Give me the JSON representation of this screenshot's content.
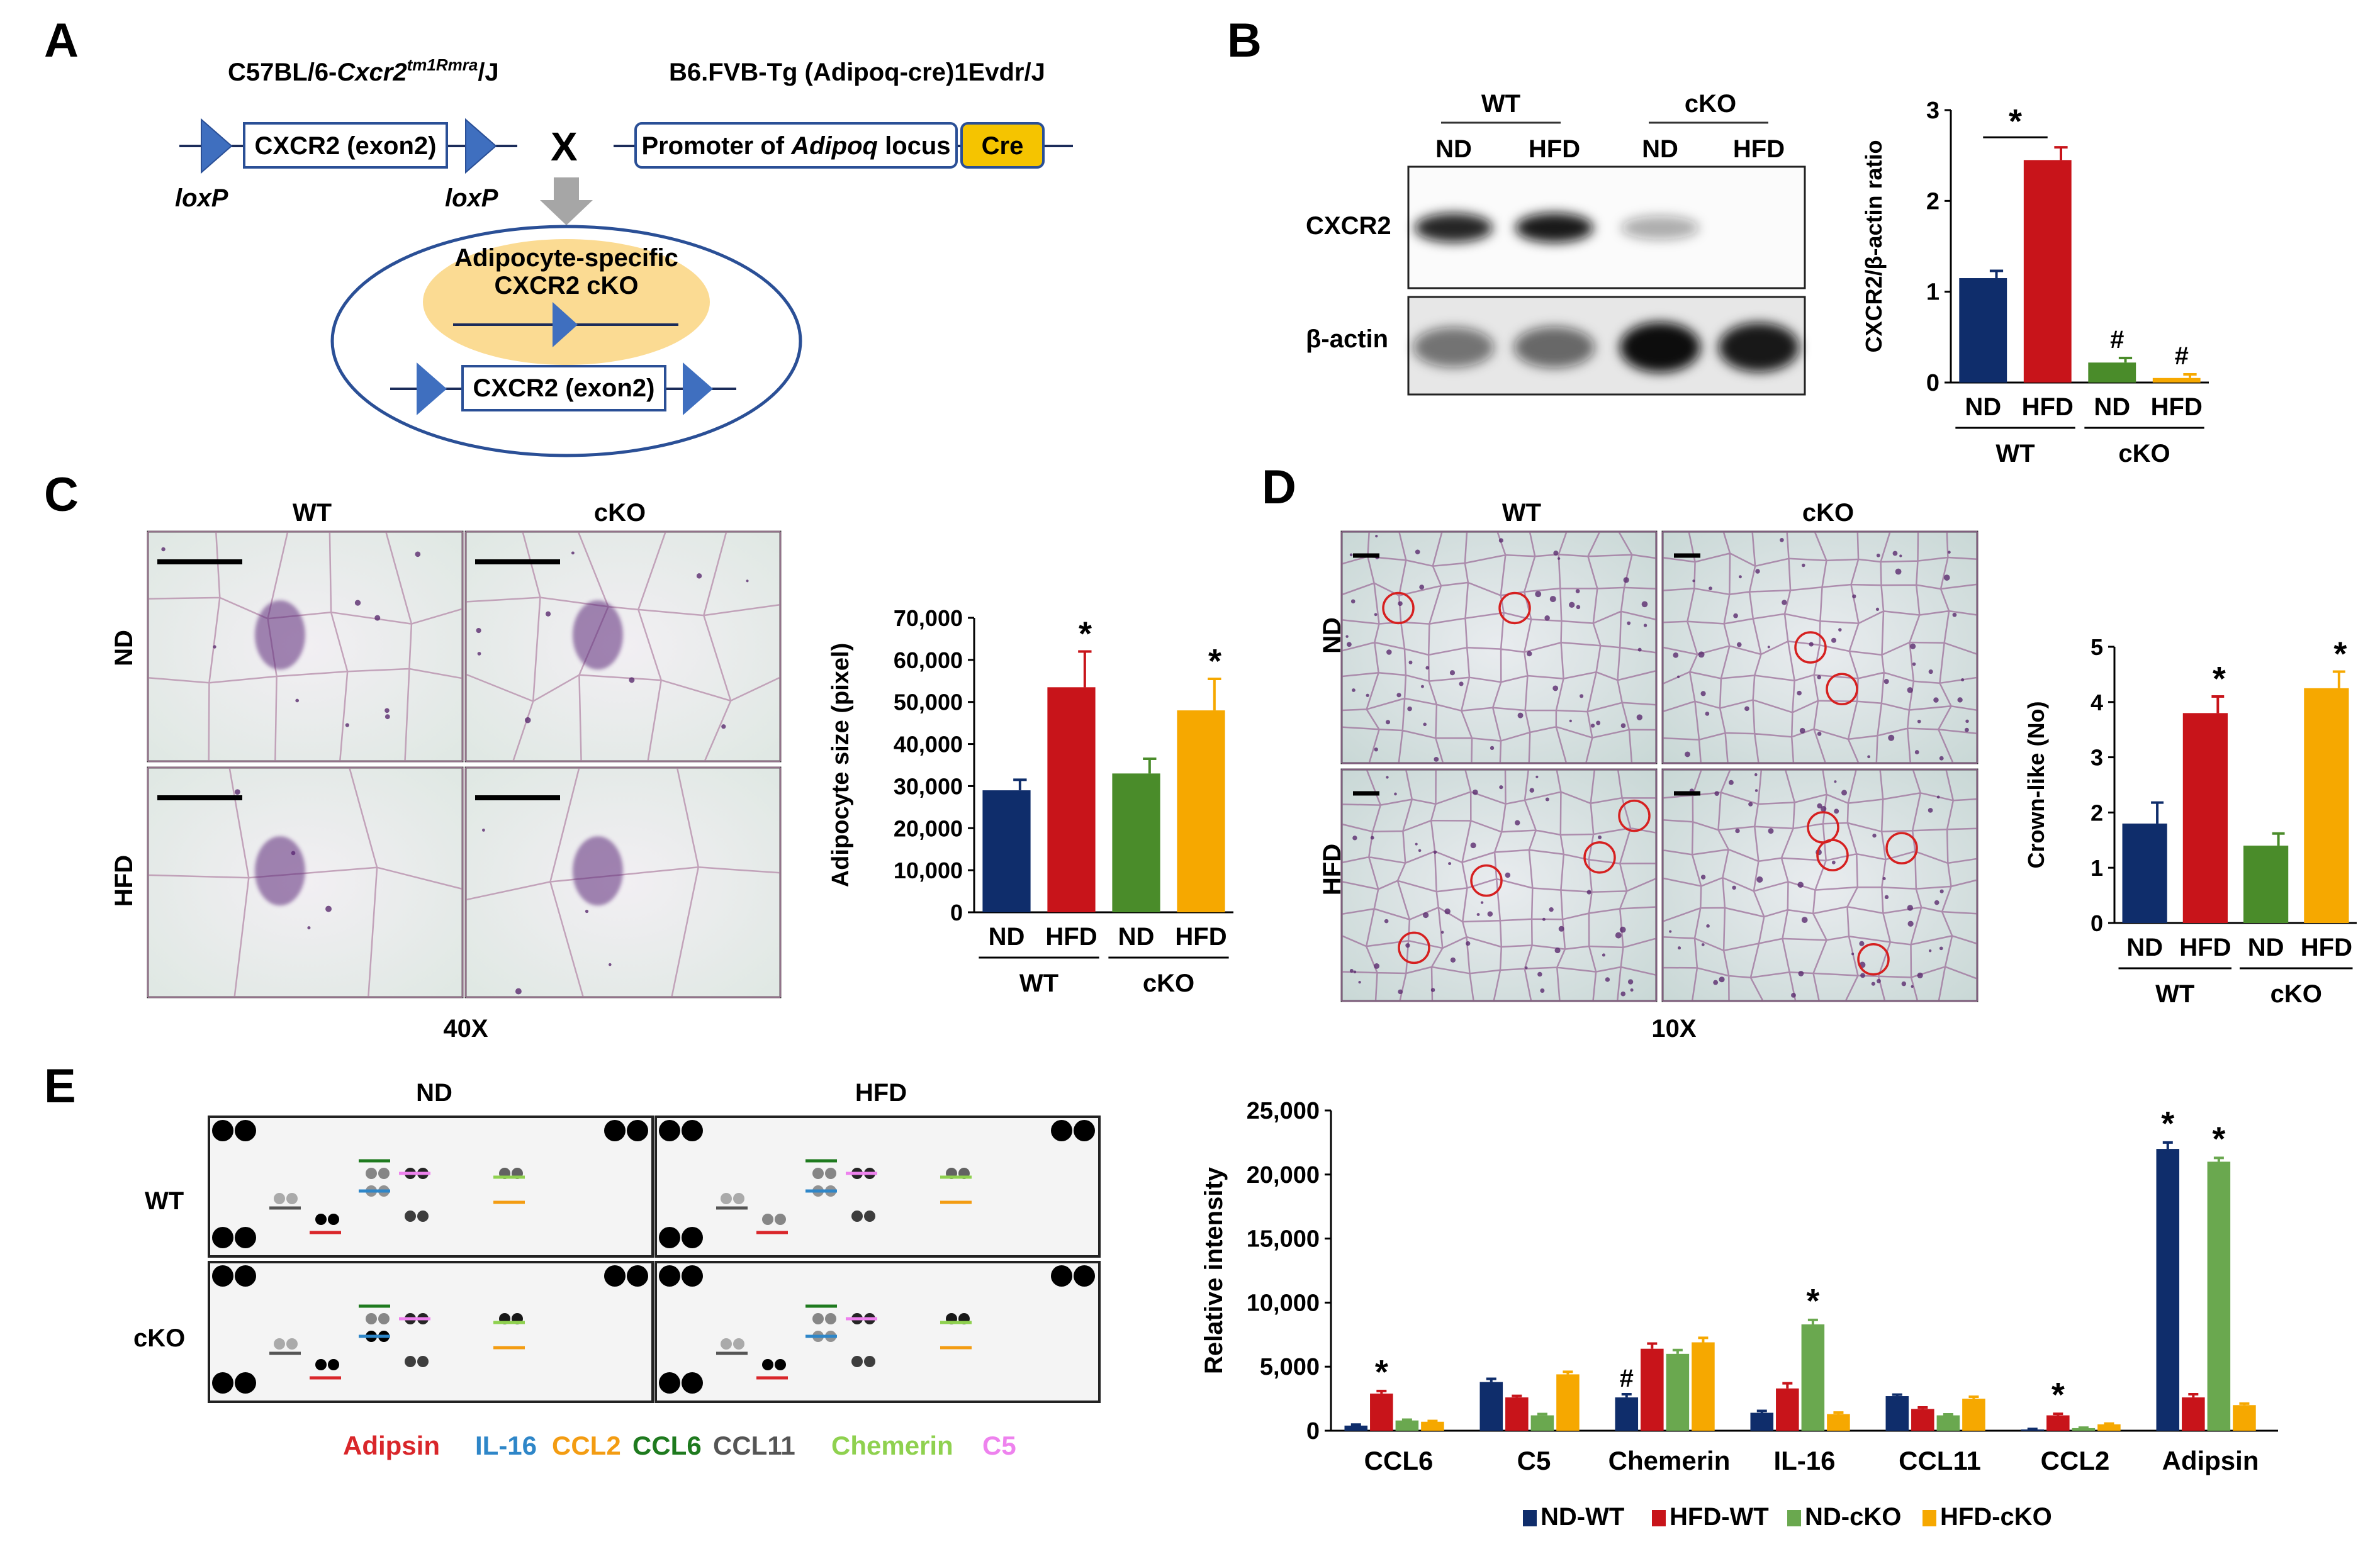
{
  "panel_labels": [
    "A",
    "B",
    "C",
    "D",
    "E"
  ],
  "panelA": {
    "left_strain_prefix": "C57BL/6-",
    "left_strain_gene": "Cxcr2",
    "left_strain_sup": "tm1Rmra",
    "left_strain_suffix": "/J",
    "right_strain": "B6.FVB-Tg (Adipoq-cre)1Evdr/J",
    "exon_box": "CXCR2 (exon2)",
    "loxp": "loxP",
    "cross": "X",
    "promoter_prefix": "Promoter of ",
    "promoter_gene": "Adipoq",
    "promoter_suffix": " locus",
    "cre": "Cre",
    "cko_line1": "Adipocyte-specific",
    "cko_line2": "CXCR2 cKO",
    "cko_exon_box": "CXCR2 (exon2)"
  },
  "panelB": {
    "blot_groups": [
      "WT",
      "cKO"
    ],
    "blot_lanes": [
      "ND",
      "HFD",
      "ND",
      "HFD"
    ],
    "row_labels": [
      "CXCR2",
      "β-actin"
    ],
    "band_intensity_cxcr2": [
      0.9,
      0.95,
      0.35,
      0.0
    ],
    "band_intensity_actin": [
      0.55,
      0.6,
      1.0,
      0.95
    ]
  },
  "panelC": {
    "col_labels": [
      "WT",
      "cKO"
    ],
    "row_labels": [
      "ND",
      "HFD"
    ],
    "magnification": "40X"
  },
  "panelD": {
    "col_labels": [
      "WT",
      "cKO"
    ],
    "row_labels": [
      "ND",
      "HFD"
    ],
    "magnification": "10X"
  },
  "panelE": {
    "col_labels": [
      "ND",
      "HFD"
    ],
    "row_labels": [
      "WT",
      "cKO"
    ],
    "legend": [
      {
        "name": "Adipsin",
        "color": "#d9262a"
      },
      {
        "name": "IL-16",
        "color": "#2e86c8"
      },
      {
        "name": "CCL2",
        "color": "#f39c12"
      },
      {
        "name": "CCL6",
        "color": "#1e7a1e"
      },
      {
        "name": "CCL11",
        "color": "#555555"
      },
      {
        "name": "Chemerin",
        "color": "#8fd14f"
      },
      {
        "name": "C5",
        "color": "#ee82ee"
      }
    ]
  },
  "chart_data": [
    {
      "id": "B",
      "type": "bar",
      "categories": [
        "ND",
        "HFD",
        "ND",
        "HFD"
      ],
      "groups": [
        "WT",
        "cKO"
      ],
      "values": [
        1.15,
        2.45,
        0.22,
        0.05
      ],
      "errors": [
        0.08,
        0.14,
        0.05,
        0.04
      ],
      "colors": [
        "#0f2d6b",
        "#c8141a",
        "#4a8c2a",
        "#f6a800"
      ],
      "ylabel": "CXCR2/β-actin ratio",
      "ylim": [
        0,
        3
      ],
      "yticks": [
        "0",
        "1",
        "2",
        "3"
      ],
      "annotations": [
        "*",
        "#",
        "#"
      ]
    },
    {
      "id": "C",
      "type": "bar",
      "categories": [
        "ND",
        "HFD",
        "ND",
        "HFD"
      ],
      "groups": [
        "WT",
        "cKO"
      ],
      "values": [
        29000,
        53500,
        33000,
        48000
      ],
      "errors": [
        2500,
        8500,
        3500,
        7500
      ],
      "colors": [
        "#0f2d6b",
        "#c8141a",
        "#4a8c2a",
        "#f6a800"
      ],
      "ylabel": "Adipocyte size (pixel)",
      "ylim": [
        0,
        70000
      ],
      "yticks": [
        "0",
        "10,000",
        "20,000",
        "30,000",
        "40,000",
        "50,000",
        "60,000",
        "70,000"
      ],
      "annotations": [
        "*",
        "*"
      ]
    },
    {
      "id": "D",
      "type": "bar",
      "categories": [
        "ND",
        "HFD",
        "ND",
        "HFD"
      ],
      "groups": [
        "WT",
        "cKO"
      ],
      "values": [
        1.8,
        3.8,
        1.4,
        4.25
      ],
      "errors": [
        0.38,
        0.3,
        0.22,
        0.3
      ],
      "colors": [
        "#0f2d6b",
        "#c8141a",
        "#4a8c2a",
        "#f6a800"
      ],
      "ylabel": "Crown-like (No)",
      "ylim": [
        0,
        5
      ],
      "yticks": [
        "0",
        "1",
        "2",
        "3",
        "4",
        "5"
      ],
      "annotations": [
        "*",
        "*"
      ]
    },
    {
      "id": "E",
      "type": "bar",
      "categories": [
        "CCL6",
        "C5",
        "Chemerin",
        "IL-16",
        "CCL11",
        "CCL2",
        "Adipsin"
      ],
      "series": [
        {
          "name": "ND-WT",
          "color": "#0f2d6b",
          "values": [
            400,
            3800,
            2600,
            1400,
            2700,
            100,
            22000
          ],
          "errors": [
            80,
            250,
            250,
            150,
            120,
            40,
            500
          ]
        },
        {
          "name": "HFD-WT",
          "color": "#c8141a",
          "values": [
            2900,
            2600,
            6400,
            3300,
            1700,
            1200,
            2600
          ],
          "errors": [
            200,
            120,
            400,
            400,
            120,
            120,
            250
          ]
        },
        {
          "name": "ND-cKO",
          "color": "#6aa84f",
          "values": [
            800,
            1200,
            6000,
            8300,
            1200,
            200,
            21000
          ],
          "errors": [
            60,
            100,
            300,
            350,
            80,
            40,
            300
          ]
        },
        {
          "name": "HFD-cKO",
          "color": "#f6a800",
          "values": [
            700,
            4400,
            6900,
            1300,
            2500,
            500,
            2000
          ],
          "errors": [
            60,
            200,
            350,
            120,
            150,
            60,
            120
          ]
        }
      ],
      "ylabel": "Relative intensity",
      "ylim": [
        0,
        25000
      ],
      "yticks": [
        "0",
        "5,000",
        "10,000",
        "15,000",
        "20,000",
        "25,000"
      ],
      "annotations": [
        "*",
        "#",
        "*",
        "*",
        "*",
        "*"
      ]
    }
  ]
}
